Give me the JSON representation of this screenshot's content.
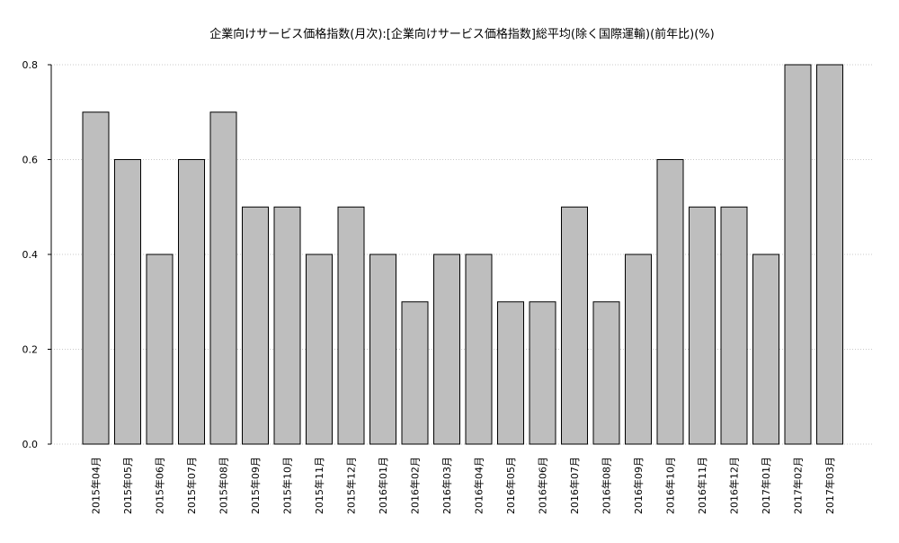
{
  "chart_data": {
    "type": "bar",
    "title": "企業向けサービス価格指数(月次):[企業向けサービス価格指数]総平均(除く国際運輸)(前年比)(%)",
    "xlabel": "",
    "ylabel": "",
    "ylim": [
      0,
      0.8
    ],
    "yticks": [
      "0.0",
      "0.2",
      "0.4",
      "0.6",
      "0.8"
    ],
    "grid": true,
    "legend": "none",
    "categories": [
      "2015年04月",
      "2015年05月",
      "2015年06月",
      "2015年07月",
      "2015年08月",
      "2015年09月",
      "2015年10月",
      "2015年11月",
      "2015年12月",
      "2016年01月",
      "2016年02月",
      "2016年03月",
      "2016年04月",
      "2016年05月",
      "2016年06月",
      "2016年07月",
      "2016年08月",
      "2016年09月",
      "2016年10月",
      "2016年11月",
      "2016年12月",
      "2017年01月",
      "2017年02月",
      "2017年03月"
    ],
    "values": [
      0.7,
      0.6,
      0.4,
      0.6,
      0.7,
      0.5,
      0.5,
      0.4,
      0.5,
      0.4,
      0.3,
      0.4,
      0.4,
      0.3,
      0.3,
      0.5,
      0.3,
      0.4,
      0.6,
      0.5,
      0.5,
      0.4,
      0.8,
      0.8
    ],
    "bar_color": "#bebebe",
    "edge_color": "#000000",
    "grid_color": "#c8c8c8"
  }
}
